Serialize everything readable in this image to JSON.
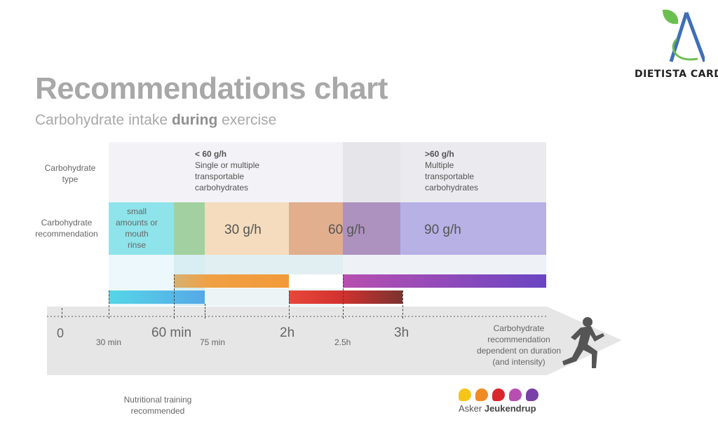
{
  "brand": {
    "logo_text": "DIETISTA CARDI"
  },
  "title": "Recommendations chart",
  "subtitle": {
    "pre": "Carbohydrate intake ",
    "bold": "during",
    "post": " exercise"
  },
  "row_labels": {
    "type": [
      "Carbohydrate",
      "type"
    ],
    "recommendation": [
      "Carbohydrate",
      "recommendation"
    ]
  },
  "types": {
    "low": {
      "heading": "< 60 g/h",
      "lines": [
        "Single or multiple",
        "transportable",
        "carbohydrates"
      ]
    },
    "high": {
      "heading": ">60 g/h",
      "lines": [
        "Multiple",
        "transportable",
        "carbohydrates"
      ]
    }
  },
  "recommendations": {
    "small": [
      "small",
      "amounts or",
      "mouth",
      "rinse"
    ],
    "r30": "30 g/h",
    "r60": "60 g/h",
    "r90": "90 g/h"
  },
  "axis": {
    "t0": "0",
    "t30": "30 min",
    "t60": "60 min",
    "t75": "75 min",
    "t2h": "2h",
    "t25h": "2.5h",
    "t3h": "3h"
  },
  "axis_note": [
    "Carbohydrate",
    "recommendation",
    "dependent on duration",
    "(and intensity)"
  ],
  "footnote": [
    "Nutritional training",
    "recommended"
  ],
  "author": {
    "first": "Asker ",
    "last": "Jeukendrup"
  },
  "colors": {
    "cyan": "#8ee4ea",
    "green": "#9fcf9f",
    "peach": "#f5dcbe",
    "tan": "#e1ae8e",
    "mauve": "#ad92bf",
    "lavender": "#b7b1e6",
    "dot_colors": [
      "#f5c518",
      "#f08a24",
      "#d9262b",
      "#b84fb0",
      "#7b3fa8"
    ]
  }
}
